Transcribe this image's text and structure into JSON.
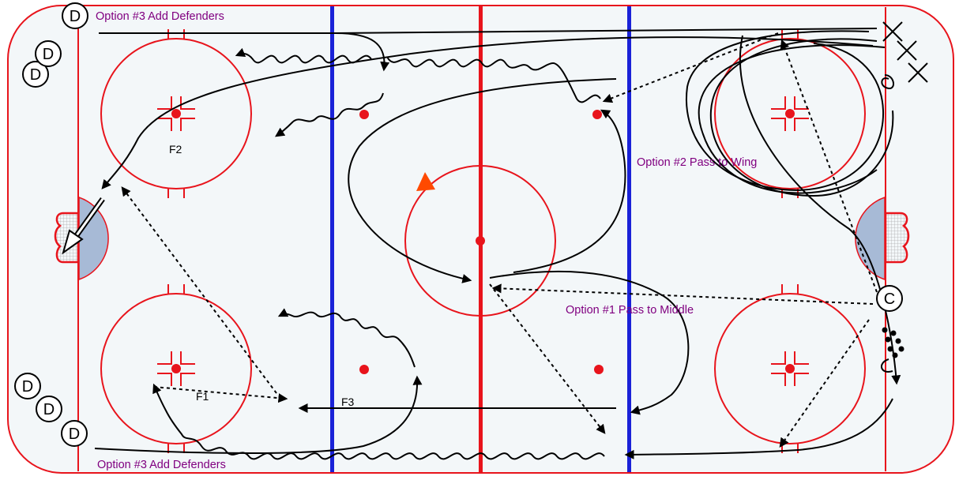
{
  "labels": {
    "option3_top": "Option #3 Add Defenders",
    "option3_bottom": "Option #3 Add Defenders",
    "option2": "Option #2 Pass to Wing",
    "option1": "Option #1 Pass to Middle",
    "f1": "F1",
    "f2": "F2",
    "f3": "F3"
  },
  "players": {
    "defender": "D",
    "coach": "C"
  },
  "colors": {
    "ice": "#f3f7f9",
    "red_line": "#e8141c",
    "blue_line": "#1a22d8",
    "crease": "#a7bad6",
    "label": "#800080",
    "cone": "#ff4a00"
  }
}
